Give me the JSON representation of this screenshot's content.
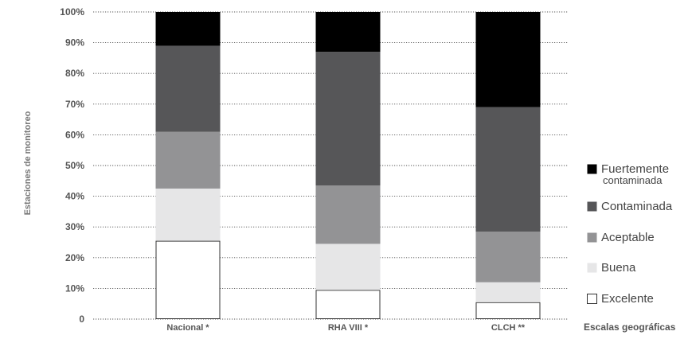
{
  "chart_data": {
    "type": "bar",
    "stacked": true,
    "title": "",
    "xlabel": "Escalas geográficas",
    "ylabel": "Estaciones de monitoreo",
    "ylim": [
      0,
      100
    ],
    "yticks": [
      "0",
      "10%",
      "20%",
      "30%",
      "40%",
      "50%",
      "60%",
      "70%",
      "80%",
      "90%",
      "100%"
    ],
    "categories": [
      "Nacional *",
      "RHA VIII *",
      "CLCH **"
    ],
    "series": [
      {
        "name": "Excelente",
        "color": "#ffffff",
        "values": [
          25.5,
          9.5,
          5.5
        ]
      },
      {
        "name": "Buena",
        "color": "#e6e6e7",
        "values": [
          17,
          15,
          6.5
        ]
      },
      {
        "name": "Aceptable",
        "color": "#939395",
        "values": [
          18.5,
          19,
          16.5
        ]
      },
      {
        "name": "Contaminada",
        "color": "#565658",
        "values": [
          28,
          43.5,
          40.5
        ]
      },
      {
        "name": "Fuertemente contaminada",
        "color": "#000000",
        "values": [
          11,
          13,
          31
        ]
      }
    ],
    "legend_position": "right",
    "grid": true
  }
}
